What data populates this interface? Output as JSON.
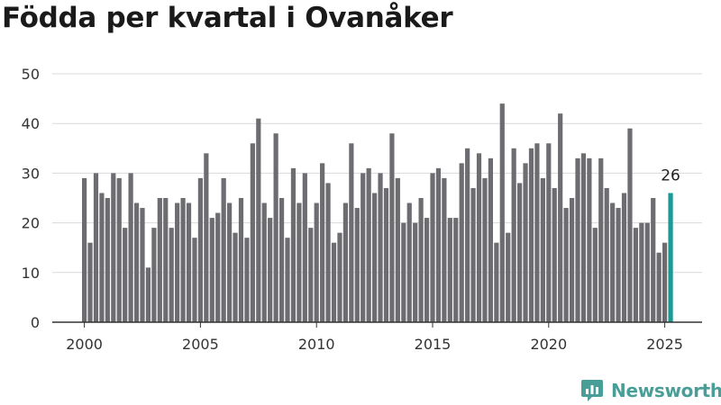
{
  "title": "Födda per kvartal i Ovanåker",
  "brand": {
    "name": "Newsworthy",
    "icon": "newsworthy-logo-icon",
    "color": "#4a9e98"
  },
  "chart_data": {
    "type": "bar",
    "title": "Födda per kvartal i Ovanåker",
    "xlabel": "",
    "ylabel": "",
    "ylim": [
      0,
      50
    ],
    "y_ticks": [
      0,
      10,
      20,
      30,
      40,
      50
    ],
    "x_ticks": [
      "2000",
      "2005",
      "2010",
      "2015",
      "2020",
      "2025"
    ],
    "grid": true,
    "bar_color": "#6d6c71",
    "highlight_color": "#1a9a94",
    "highlight_label": "26",
    "categories": [
      "2000 K1",
      "2000 K2",
      "2000 K3",
      "2000 K4",
      "2001 K1",
      "2001 K2",
      "2001 K3",
      "2001 K4",
      "2002 K1",
      "2002 K2",
      "2002 K3",
      "2002 K4",
      "2003 K1",
      "2003 K2",
      "2003 K3",
      "2003 K4",
      "2004 K1",
      "2004 K2",
      "2004 K3",
      "2004 K4",
      "2005 K1",
      "2005 K2",
      "2005 K3",
      "2005 K4",
      "2006 K1",
      "2006 K2",
      "2006 K3",
      "2006 K4",
      "2007 K1",
      "2007 K2",
      "2007 K3",
      "2007 K4",
      "2008 K1",
      "2008 K2",
      "2008 K3",
      "2008 K4",
      "2009 K1",
      "2009 K2",
      "2009 K3",
      "2009 K4",
      "2010 K1",
      "2010 K2",
      "2010 K3",
      "2010 K4",
      "2011 K1",
      "2011 K2",
      "2011 K3",
      "2011 K4",
      "2012 K1",
      "2012 K2",
      "2012 K3",
      "2012 K4",
      "2013 K1",
      "2013 K2",
      "2013 K3",
      "2013 K4",
      "2014 K1",
      "2014 K2",
      "2014 K3",
      "2014 K4",
      "2015 K1",
      "2015 K2",
      "2015 K3",
      "2015 K4",
      "2016 K1",
      "2016 K2",
      "2016 K3",
      "2016 K4",
      "2017 K1",
      "2017 K2",
      "2017 K3",
      "2017 K4",
      "2018 K1",
      "2018 K2",
      "2018 K3",
      "2018 K4",
      "2019 K1",
      "2019 K2",
      "2019 K3",
      "2019 K4",
      "2020 K1",
      "2020 K2",
      "2020 K3",
      "2020 K4",
      "2021 K1",
      "2021 K2",
      "2021 K3",
      "2021 K4",
      "2022 K1",
      "2022 K2",
      "2022 K3",
      "2022 K4",
      "2023 K1",
      "2023 K2",
      "2023 K3",
      "2023 K4",
      "2024 K1",
      "2024 K2",
      "2024 K3",
      "2024 K4",
      "2025 K1",
      "2025 K2"
    ],
    "values": [
      29,
      16,
      30,
      26,
      25,
      30,
      29,
      19,
      30,
      24,
      23,
      11,
      19,
      25,
      25,
      19,
      24,
      25,
      24,
      17,
      29,
      34,
      21,
      22,
      29,
      24,
      18,
      25,
      17,
      36,
      41,
      24,
      21,
      38,
      25,
      17,
      31,
      24,
      30,
      19,
      24,
      32,
      28,
      16,
      18,
      24,
      36,
      23,
      30,
      31,
      26,
      30,
      27,
      38,
      29,
      20,
      24,
      20,
      25,
      21,
      30,
      31,
      29,
      21,
      21,
      32,
      35,
      27,
      34,
      29,
      33,
      16,
      44,
      18,
      35,
      28,
      32,
      35,
      36,
      29,
      36,
      27,
      42,
      23,
      25,
      33,
      34,
      33,
      19,
      33,
      27,
      24,
      23,
      26,
      39,
      19,
      20,
      20,
      25,
      14,
      16,
      26
    ]
  }
}
